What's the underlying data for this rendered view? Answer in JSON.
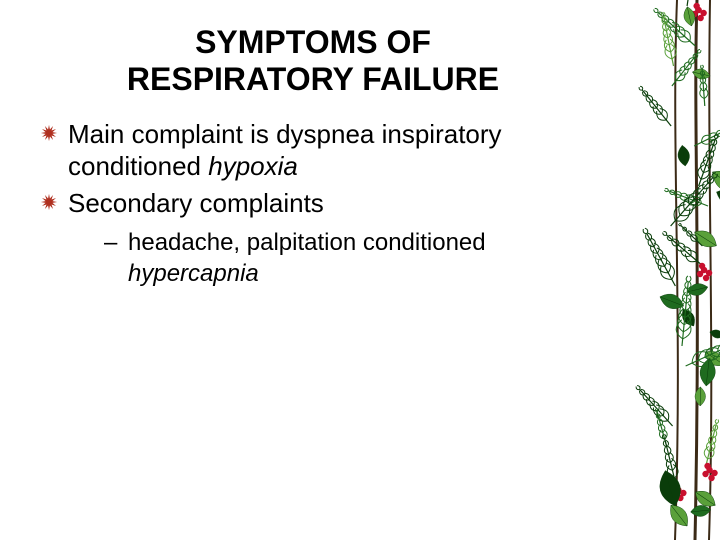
{
  "title_line1": "SYMPTOMS OF",
  "title_line2": "RESPIRATORY FAILURE",
  "title_fontsize": 32,
  "body_fontsize": 26,
  "sub_fontsize": 24,
  "bullet_color": "#b03020",
  "text_color": "#000000",
  "background_color": "#ffffff",
  "bullets": [
    {
      "text_a": "Main complaint is dyspnea inspiratory conditioned ",
      "italic_b": "hypoxia"
    },
    {
      "text_a": "Secondary complaints",
      "italic_b": ""
    }
  ],
  "sub_bullets": [
    {
      "text_a": " headache, palpitation conditioned ",
      "italic_b": "hypercapnia"
    }
  ],
  "foliage": {
    "leaf_color_dark": "#0a3d0a",
    "leaf_color_mid": "#1f6b1f",
    "leaf_color_light": "#5aa03a",
    "berry_color": "#c8102e",
    "stem_color": "#3b2a16"
  }
}
